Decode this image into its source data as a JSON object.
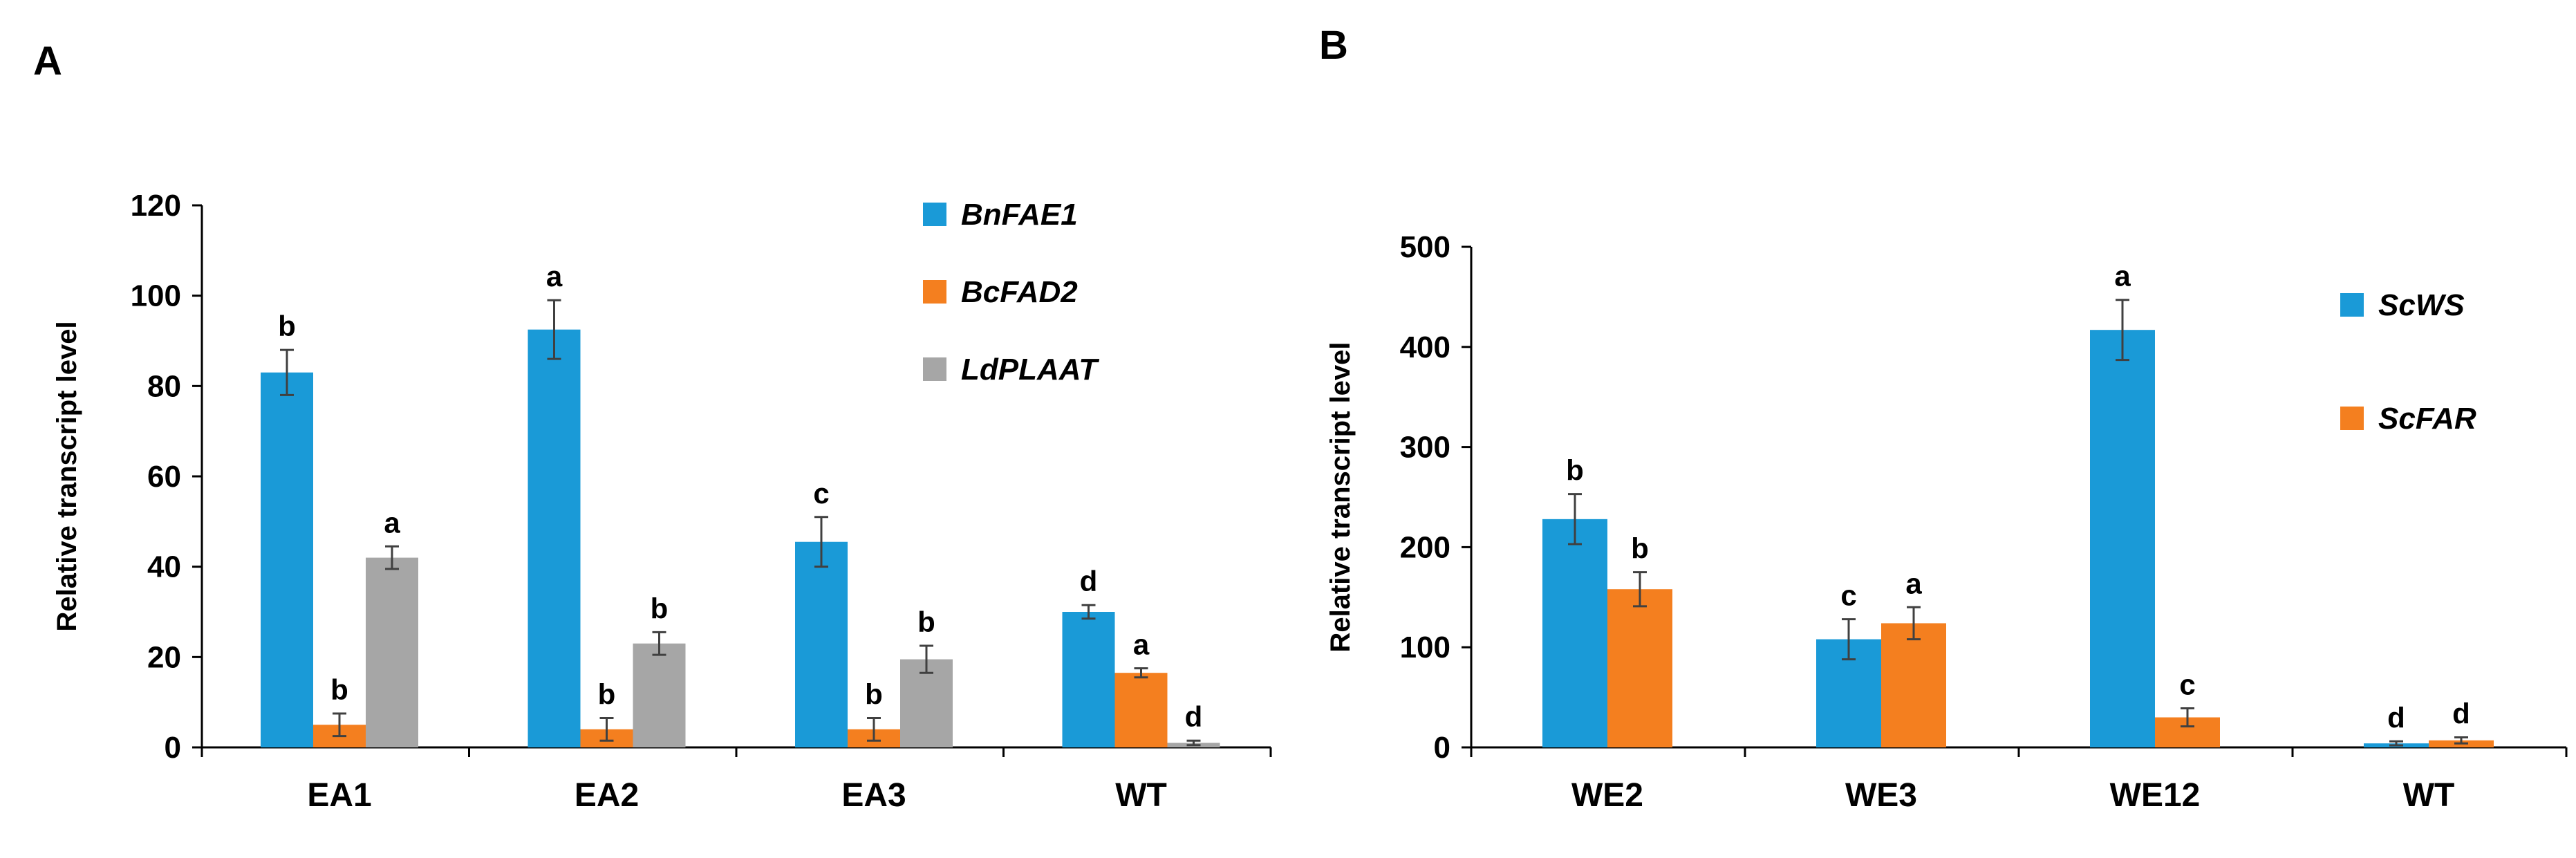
{
  "panels": [
    {
      "letter": "A",
      "chart_data": {
        "type": "bar",
        "categories": [
          "EA1",
          "EA2",
          "EA3",
          "WT"
        ],
        "ylabel": "Relative transcript level",
        "xlabel": "",
        "ylim": [
          0,
          120
        ],
        "yticks": [
          0,
          20,
          40,
          60,
          80,
          100,
          120
        ],
        "grid": false,
        "legend_position": "top-right",
        "series": [
          {
            "name": "BnFAE1",
            "color": "#1a9ad7",
            "values": [
              83,
              92.5,
              45.5,
              30
            ],
            "errors": [
              5,
              6.5,
              5.5,
              1.5
            ],
            "labels": [
              "b",
              "a",
              "c",
              "d"
            ]
          },
          {
            "name": "BcFAD2",
            "color": "#f47f1f",
            "values": [
              5,
              4,
              4,
              16.5
            ],
            "errors": [
              2.5,
              2.5,
              2.5,
              1
            ],
            "labels": [
              "b",
              "b",
              "b",
              "a"
            ]
          },
          {
            "name": "LdPLAAT",
            "color": "#a6a6a6",
            "values": [
              42,
              23,
              19.5,
              1
            ],
            "errors": [
              2.5,
              2.5,
              3,
              0.5
            ],
            "labels": [
              "a",
              "b",
              "b",
              "d"
            ]
          }
        ]
      }
    },
    {
      "letter": "B",
      "chart_data": {
        "type": "bar",
        "categories": [
          "WE2",
          "WE3",
          "WE12",
          "WT"
        ],
        "ylabel": "Relative transcript level",
        "xlabel": "",
        "ylim": [
          0,
          500
        ],
        "yticks": [
          0,
          100,
          200,
          300,
          400,
          500
        ],
        "grid": false,
        "legend_position": "right",
        "series": [
          {
            "name": "ScWS",
            "color": "#1a9ad7",
            "values": [
              228,
              108,
              417,
              4
            ],
            "errors": [
              25,
              20,
              30,
              2
            ],
            "labels": [
              "b",
              "c",
              "a",
              "d"
            ]
          },
          {
            "name": "ScFAR",
            "color": "#f47f1f",
            "values": [
              158,
              124,
              30,
              7
            ],
            "errors": [
              17,
              16,
              9,
              3
            ],
            "labels": [
              "b",
              "a",
              "c",
              "d"
            ]
          }
        ]
      }
    }
  ]
}
